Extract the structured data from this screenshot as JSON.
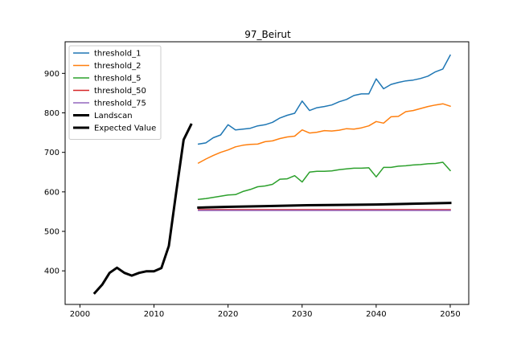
{
  "chart_data": {
    "type": "line",
    "title": "97_Beirut",
    "xlabel": "",
    "ylabel": "",
    "xlim": [
      1998,
      2052.5
    ],
    "ylim": [
      315,
      980
    ],
    "xticks": [
      2000,
      2010,
      2020,
      2030,
      2040,
      2050
    ],
    "yticks": [
      400,
      500,
      600,
      700,
      800,
      900
    ],
    "grid": false,
    "legend_position": "top-left",
    "series": [
      {
        "name": "threshold_1",
        "color": "#1f77b4",
        "width": 1.5,
        "x": [
          2016,
          2017,
          2018,
          2019,
          2020,
          2021,
          2022,
          2023,
          2024,
          2025,
          2026,
          2027,
          2028,
          2029,
          2030,
          2031,
          2032,
          2033,
          2034,
          2035,
          2036,
          2037,
          2038,
          2039,
          2040,
          2041,
          2042,
          2043,
          2044,
          2045,
          2046,
          2047,
          2048,
          2049,
          2050
        ],
        "values": [
          721,
          724,
          737,
          744,
          770,
          757,
          759,
          761,
          767,
          770,
          776,
          787,
          794,
          799,
          830,
          806,
          813,
          816,
          820,
          828,
          834,
          844,
          848,
          848,
          886,
          861,
          872,
          877,
          881,
          883,
          887,
          893,
          904,
          911,
          946
        ]
      },
      {
        "name": "threshold_2",
        "color": "#ff7f0e",
        "width": 1.5,
        "x": [
          2016,
          2017,
          2018,
          2019,
          2020,
          2021,
          2022,
          2023,
          2024,
          2025,
          2026,
          2027,
          2028,
          2029,
          2030,
          2031,
          2032,
          2033,
          2034,
          2035,
          2036,
          2037,
          2038,
          2039,
          2040,
          2041,
          2042,
          2043,
          2044,
          2045,
          2046,
          2047,
          2048,
          2049,
          2050
        ],
        "values": [
          673,
          683,
          692,
          700,
          706,
          714,
          718,
          720,
          721,
          727,
          729,
          735,
          739,
          741,
          757,
          749,
          751,
          755,
          754,
          756,
          760,
          759,
          762,
          767,
          778,
          774,
          790,
          791,
          803,
          806,
          811,
          816,
          820,
          823,
          817
        ]
      },
      {
        "name": "threshold_5",
        "color": "#2ca02c",
        "width": 1.5,
        "x": [
          2016,
          2017,
          2018,
          2019,
          2020,
          2021,
          2022,
          2023,
          2024,
          2025,
          2026,
          2027,
          2028,
          2029,
          2030,
          2031,
          2032,
          2033,
          2034,
          2035,
          2036,
          2037,
          2038,
          2039,
          2040,
          2041,
          2042,
          2043,
          2044,
          2045,
          2046,
          2047,
          2048,
          2049,
          2050
        ],
        "values": [
          581,
          583,
          586,
          589,
          592,
          593,
          601,
          606,
          613,
          615,
          619,
          632,
          633,
          641,
          625,
          650,
          652,
          652,
          653,
          656,
          658,
          660,
          660,
          661,
          638,
          662,
          662,
          665,
          666,
          668,
          669,
          671,
          672,
          675,
          654
        ]
      },
      {
        "name": "threshold_50",
        "color": "#d62728",
        "width": 1.5,
        "x": [
          2016,
          2050
        ],
        "values": [
          555,
          555
        ]
      },
      {
        "name": "threshold_75",
        "color": "#9467bd",
        "width": 1.5,
        "x": [
          2016,
          2050
        ],
        "values": [
          553,
          553
        ]
      },
      {
        "name": "Landscan",
        "color": "#000000",
        "width": 3,
        "x": [
          2002,
          2003,
          2004,
          2005,
          2006,
          2007,
          2008,
          2009,
          2010,
          2011,
          2012,
          2013,
          2014,
          2015
        ],
        "values": [
          344,
          365,
          395,
          408,
          395,
          388,
          395,
          399,
          399,
          407,
          463,
          600,
          732,
          770
        ]
      },
      {
        "name": "Expected Value",
        "color": "#000000",
        "width": 3,
        "x": [
          2016,
          2020,
          2025,
          2030,
          2035,
          2040,
          2045,
          2050
        ],
        "values": [
          560,
          562,
          564,
          566,
          567,
          568,
          570,
          572
        ]
      }
    ]
  }
}
